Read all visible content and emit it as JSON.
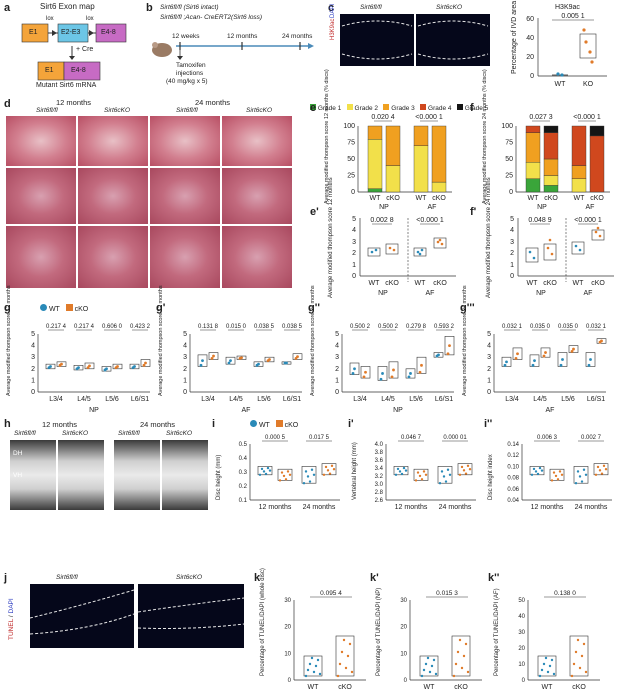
{
  "panels": {
    "a": {
      "label": "a",
      "title": "Sirt6 Exon map",
      "title_gene": "Sirt6",
      "lox1": "lox",
      "lox2": "lox",
      "cre": "+ Cre",
      "e1": "E1",
      "e23": "E2-E3",
      "e48": "E4-8",
      "e1b": "E1",
      "e48b": "E4-8",
      "mrna": "Mutant Sirt6 mRNA"
    },
    "b": {
      "label": "b",
      "line1": "Sirt6fl/fl (Sirt6 intact)",
      "line2": "Sirt6fl/fl ;Acan- CreERT2(Sirt6 loss)",
      "t1": "12 weeks",
      "t2": "12 months",
      "t3": "24 months",
      "inj1": "Tamoxifen",
      "inj2": "injections",
      "inj3": "(40 mg/kg x 5)"
    },
    "c": {
      "label": "c",
      "img1": "Sirt6fl/fl",
      "img2": "Sirt6cKO",
      "side_red": "H3K9ac",
      "side_blue": "DAPI",
      "chart_title": "H3K9ac",
      "ylabel": "Percentage of IVD area",
      "p": "0.005 1",
      "ticks": [
        "0",
        "20",
        "40",
        "60"
      ],
      "cats": [
        "WT",
        "KO"
      ]
    },
    "d": {
      "label": "d",
      "h12": "12 months",
      "h24": "24 months",
      "c1": "Sirt6fl/fl",
      "c2": "Sirt6cKO",
      "c3": "Sirt6fl/fl",
      "c4": "Sirt6cKO"
    },
    "e": {
      "label": "e",
      "ylabel": "Average modified thompson score 12 months (% discs)",
      "p1": "0.020 4",
      "p2": "<0.000 1",
      "cats": [
        "WT",
        "cKO",
        "WT",
        "cKO"
      ],
      "groups": [
        "NP",
        "AF"
      ],
      "ticks": [
        "0",
        "25",
        "50",
        "75",
        "100"
      ]
    },
    "f": {
      "label": "f",
      "ylabel": "Average modified thompson score 24 months (% discs)",
      "p1": "0.027 3",
      "p2": "<0.000 1",
      "cats": [
        "WT",
        "cKO",
        "WT",
        "cKO"
      ],
      "groups": [
        "NP",
        "AF"
      ],
      "ticks": [
        "0",
        "25",
        "50",
        "75",
        "100"
      ]
    },
    "legend_grades": [
      "Grade 1",
      "Grade 2",
      "Grade 3",
      "Grade 4",
      "Grade 5"
    ],
    "e2": {
      "label": "e'",
      "ylabel": "Average modified thompson score 12 months",
      "p1": "0.002 8",
      "p2": "<0.000 1",
      "ticks": [
        "0",
        "1",
        "2",
        "3",
        "4",
        "5"
      ],
      "cats": [
        "WT",
        "cKO",
        "WT",
        "cKO"
      ],
      "groups": [
        "NP",
        "AF"
      ]
    },
    "f2": {
      "label": "f'",
      "ylabel": "Average modified thompson score 24 months",
      "p1": "0.048 9",
      "p2": "<0.000 1",
      "ticks": [
        "0",
        "1",
        "2",
        "3",
        "4",
        "5"
      ],
      "cats": [
        "WT",
        "cKO",
        "WT",
        "cKO"
      ],
      "groups": [
        "NP",
        "AF"
      ]
    },
    "g": {
      "label": "g",
      "legend": [
        "WT",
        "cKO"
      ],
      "ylabel": "Average modified thompson score 12 months",
      "ps": [
        "0.217 4",
        "0.217 4",
        "0.606 0",
        "0.423 2"
      ],
      "levels": [
        "L3/4",
        "L4/5",
        "L5/6",
        "L6/S1"
      ],
      "group": "NP",
      "ticks": [
        "0",
        "1",
        "2",
        "3",
        "4",
        "5"
      ]
    },
    "g1": {
      "label": "g'",
      "ylabel": "Average modified thompson score 12 months",
      "ps": [
        "0.131 8",
        "0.015 0",
        "0.038 5",
        "0.038 5"
      ],
      "levels": [
        "L3/4",
        "L4/5",
        "L5/6",
        "L6/S1"
      ],
      "group": "AF",
      "ticks": [
        "0",
        "1",
        "2",
        "3",
        "4",
        "5"
      ]
    },
    "g2": {
      "label": "g''",
      "ylabel": "Average modified thompson score 24 months",
      "ps": [
        "0.500 2",
        "0.500 2",
        "0.279 8",
        "0.593 2"
      ],
      "levels": [
        "L3/4",
        "L4/5",
        "L5/6",
        "L6/S1"
      ],
      "group": "NP",
      "ticks": [
        "0",
        "1",
        "2",
        "3",
        "4",
        "5"
      ]
    },
    "g3": {
      "label": "g'''",
      "ylabel": "Average modified thompson score 24 months",
      "ps": [
        "0.032 1",
        "0.035 0",
        "0.035 0",
        "0.032 1"
      ],
      "levels": [
        "L3/4",
        "L4/5",
        "L5/6",
        "L6/S1"
      ],
      "group": "AF",
      "ticks": [
        "0",
        "1",
        "2",
        "3",
        "4",
        "5"
      ]
    },
    "h": {
      "label": "h",
      "h12": "12 months",
      "h24": "24 months",
      "c1": "Sirt6fl/fl",
      "c2": "Sirt6cKO",
      "c3": "Sirt6fl/fl",
      "c4": "Sirt6cKO",
      "dh": "DH",
      "vh": "VH"
    },
    "i": {
      "label": "i",
      "legend": [
        "WT",
        "cKO"
      ],
      "ylabel": "Disc height (mm)",
      "p1": "0.000 5",
      "p2": "0.017 5",
      "ticks": [
        "0.1",
        "0.2",
        "0.3",
        "0.4",
        "0.5"
      ],
      "groups": [
        "12 months",
        "24 months"
      ]
    },
    "i1": {
      "label": "i'",
      "ylabel": "Vertebral height (mm)",
      "p1": "0.046 7",
      "p2": "0.000 01",
      "ticks": [
        "2.6",
        "2.8",
        "3.0",
        "3.2",
        "3.4",
        "3.6",
        "3.8",
        "4.0"
      ],
      "groups": [
        "12 months",
        "24 months"
      ]
    },
    "i2": {
      "label": "i''",
      "ylabel": "Disc height index",
      "p1": "0.006 3",
      "p2": "0.002 7",
      "ticks": [
        "0.04",
        "0.06",
        "0.08",
        "0.10",
        "0.12",
        "0.14"
      ],
      "groups": [
        "12 months",
        "24 months"
      ]
    },
    "j": {
      "label": "j",
      "img1": "Sirt6fl/fl",
      "img2": "Sirt6cKO",
      "side_red": "TUNEL",
      "side_blue": "DAPI"
    },
    "k": {
      "label": "k",
      "ylabel": "Percentage of TUNEL/DAPI (whole disc)",
      "p": "0.095 4",
      "ticks": [
        "0",
        "10",
        "20",
        "30"
      ],
      "cats": [
        "WT",
        "cKO"
      ]
    },
    "k1": {
      "label": "k'",
      "ylabel": "Percentage of TUNEL/DAPI (NP)",
      "p": "0.015 3",
      "ticks": [
        "0",
        "10",
        "20",
        "30"
      ],
      "cats": [
        "WT",
        "cKO"
      ]
    },
    "k2": {
      "label": "k''",
      "ylabel": "Percentage of TUNEL/DAPI (AF)",
      "p": "0.138 0",
      "ticks": [
        "0",
        "10",
        "20",
        "30",
        "40",
        "50"
      ],
      "cats": [
        "WT",
        "cKO"
      ]
    }
  },
  "colors": {
    "wt": "#2a8ab8",
    "cko": "#e07b2a",
    "g1": "#3aa53a",
    "g2": "#f2e04a",
    "g3": "#f0a020",
    "g4": "#d0481e",
    "g5": "#151515"
  },
  "chart_data": [
    {
      "type": "bar",
      "id": "e",
      "categories": [
        "WT NP",
        "cKO NP",
        "WT AF",
        "cKO AF"
      ],
      "series": [
        {
          "name": "Grade 1",
          "values": [
            5,
            0,
            0,
            0
          ]
        },
        {
          "name": "Grade 2",
          "values": [
            75,
            40,
            70,
            15
          ]
        },
        {
          "name": "Grade 3",
          "values": [
            20,
            60,
            30,
            85
          ]
        },
        {
          "name": "Grade 4",
          "values": [
            0,
            0,
            0,
            0
          ]
        },
        {
          "name": "Grade 5",
          "values": [
            0,
            0,
            0,
            0
          ]
        }
      ],
      "ylim": [
        0,
        100
      ]
    },
    {
      "type": "bar",
      "id": "f",
      "categories": [
        "WT NP",
        "cKO NP",
        "WT AF",
        "cKO AF"
      ],
      "series": [
        {
          "name": "Grade 1",
          "values": [
            20,
            10,
            0,
            0
          ]
        },
        {
          "name": "Grade 2",
          "values": [
            25,
            15,
            20,
            0
          ]
        },
        {
          "name": "Grade 3",
          "values": [
            45,
            25,
            20,
            0
          ]
        },
        {
          "name": "Grade 4",
          "values": [
            10,
            40,
            60,
            85
          ]
        },
        {
          "name": "Grade 5",
          "values": [
            0,
            10,
            0,
            15
          ]
        }
      ],
      "ylim": [
        0,
        100
      ]
    }
  ]
}
